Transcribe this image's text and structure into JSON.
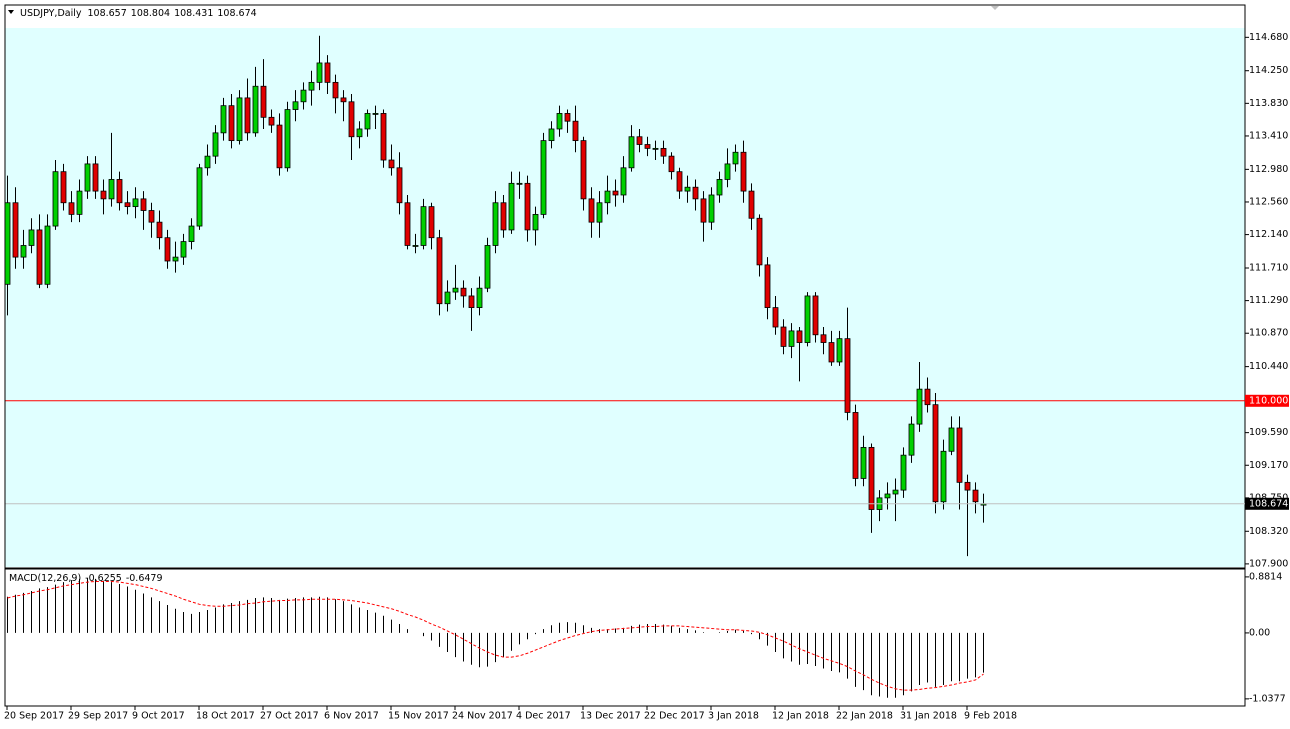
{
  "chart_data": [
    {
      "type": "candlestick",
      "symbol": "USDJPY,Daily",
      "categories": [
        "20 Sep 2017",
        null,
        null,
        null,
        null,
        null,
        null,
        null,
        "29 Sep 2017",
        null,
        null,
        null,
        null,
        null,
        null,
        null,
        "9 Oct 2017",
        null,
        null,
        null,
        null,
        null,
        null,
        null,
        "18 Oct 2017",
        null,
        null,
        null,
        null,
        null,
        null,
        null,
        "27 Oct 2017",
        null,
        null,
        null,
        null,
        null,
        null,
        null,
        "6 Nov 2017",
        null,
        null,
        null,
        null,
        null,
        null,
        null,
        "15 Nov 2017",
        null,
        null,
        null,
        null,
        null,
        null,
        null,
        "24 Nov 2017",
        null,
        null,
        null,
        null,
        null,
        null,
        null,
        "4 Dec 2017",
        null,
        null,
        null,
        null,
        null,
        null,
        null,
        "13 Dec 2017",
        null,
        null,
        null,
        null,
        null,
        null,
        null,
        "22 Dec 2017",
        null,
        null,
        null,
        null,
        null,
        null,
        null,
        "3 Jan 2018",
        null,
        null,
        null,
        null,
        null,
        null,
        null,
        "12 Jan 2018",
        null,
        null,
        null,
        null,
        null,
        null,
        null,
        "22 Jan 2018",
        null,
        null,
        null,
        null,
        null,
        null,
        null,
        "31 Jan 2018",
        null,
        null,
        null,
        null,
        null,
        null,
        null,
        "9 Feb 2018",
        null,
        null
      ],
      "candles": [
        [
          111.5,
          112.9,
          111.1,
          112.55
        ],
        [
          112.55,
          112.75,
          111.7,
          111.85
        ],
        [
          111.85,
          112.2,
          111.7,
          112.0
        ],
        [
          112.0,
          112.35,
          111.9,
          112.2
        ],
        [
          112.2,
          112.4,
          111.45,
          111.5
        ],
        [
          111.5,
          112.4,
          111.45,
          112.25
        ],
        [
          112.25,
          113.1,
          112.2,
          112.95
        ],
        [
          112.95,
          113.05,
          112.45,
          112.55
        ],
        [
          112.55,
          112.7,
          112.3,
          112.4
        ],
        [
          112.4,
          112.85,
          112.3,
          112.7
        ],
        [
          112.7,
          113.15,
          112.6,
          113.05
        ],
        [
          113.05,
          113.15,
          112.6,
          112.7
        ],
        [
          112.7,
          112.85,
          112.4,
          112.6
        ],
        [
          112.6,
          113.45,
          112.5,
          112.85
        ],
        [
          112.85,
          112.95,
          112.45,
          112.55
        ],
        [
          112.55,
          112.7,
          112.4,
          112.5
        ],
        [
          112.5,
          112.75,
          112.35,
          112.6
        ],
        [
          112.6,
          112.7,
          112.2,
          112.45
        ],
        [
          112.45,
          112.55,
          112.1,
          112.3
        ],
        [
          112.3,
          112.45,
          111.95,
          112.1
        ],
        [
          112.1,
          112.2,
          111.7,
          111.8
        ],
        [
          111.8,
          112.05,
          111.65,
          111.85
        ],
        [
          111.85,
          112.15,
          111.75,
          112.05
        ],
        [
          112.05,
          112.35,
          111.95,
          112.25
        ],
        [
          112.25,
          113.05,
          112.2,
          113.0
        ],
        [
          113.0,
          113.3,
          112.9,
          113.15
        ],
        [
          113.15,
          113.55,
          113.05,
          113.45
        ],
        [
          113.45,
          113.9,
          113.35,
          113.8
        ],
        [
          113.8,
          113.95,
          113.25,
          113.35
        ],
        [
          113.35,
          114.0,
          113.3,
          113.9
        ],
        [
          113.9,
          114.15,
          113.35,
          113.45
        ],
        [
          113.45,
          114.3,
          113.4,
          114.05
        ],
        [
          114.05,
          114.4,
          113.5,
          113.65
        ],
        [
          113.65,
          113.75,
          113.45,
          113.55
        ],
        [
          113.55,
          113.7,
          112.9,
          113.0
        ],
        [
          113.0,
          113.85,
          112.95,
          113.75
        ],
        [
          113.75,
          114.0,
          113.6,
          113.85
        ],
        [
          113.85,
          114.1,
          113.75,
          114.0
        ],
        [
          114.0,
          114.25,
          113.8,
          114.1
        ],
        [
          114.1,
          114.7,
          114.0,
          114.35
        ],
        [
          114.35,
          114.45,
          113.95,
          114.1
        ],
        [
          114.1,
          114.2,
          113.7,
          113.9
        ],
        [
          113.9,
          114.0,
          113.6,
          113.85
        ],
        [
          113.85,
          113.95,
          113.1,
          113.4
        ],
        [
          113.4,
          113.6,
          113.25,
          113.5
        ],
        [
          113.5,
          113.75,
          113.4,
          113.7
        ],
        [
          113.7,
          113.8,
          113.5,
          113.7
        ],
        [
          113.7,
          113.75,
          113.0,
          113.1
        ],
        [
          113.1,
          113.3,
          112.9,
          113.0
        ],
        [
          113.0,
          113.2,
          112.4,
          112.55
        ],
        [
          112.55,
          112.65,
          111.95,
          112.0
        ],
        [
          112.0,
          112.15,
          111.9,
          112.0
        ],
        [
          112.0,
          112.6,
          111.95,
          112.5
        ],
        [
          112.5,
          112.55,
          111.95,
          112.1
        ],
        [
          112.1,
          112.2,
          111.1,
          111.25
        ],
        [
          111.25,
          111.55,
          111.15,
          111.4
        ],
        [
          111.4,
          111.75,
          111.3,
          111.45
        ],
        [
          111.45,
          111.55,
          111.2,
          111.35
        ],
        [
          111.35,
          111.45,
          110.9,
          111.2
        ],
        [
          111.2,
          111.6,
          111.1,
          111.45
        ],
        [
          111.45,
          112.1,
          111.4,
          112.0
        ],
        [
          112.0,
          112.7,
          111.9,
          112.55
        ],
        [
          112.55,
          112.65,
          112.1,
          112.2
        ],
        [
          112.2,
          112.95,
          112.15,
          112.8
        ],
        [
          112.8,
          112.95,
          112.6,
          112.8
        ],
        [
          112.8,
          112.9,
          112.05,
          112.2
        ],
        [
          112.2,
          112.5,
          112.0,
          112.4
        ],
        [
          112.4,
          113.45,
          112.35,
          113.35
        ],
        [
          113.35,
          113.6,
          113.25,
          113.5
        ],
        [
          113.5,
          113.8,
          113.4,
          113.7
        ],
        [
          113.7,
          113.75,
          113.45,
          113.6
        ],
        [
          113.6,
          113.8,
          113.2,
          113.35
        ],
        [
          113.35,
          113.4,
          112.45,
          112.6
        ],
        [
          112.6,
          112.75,
          112.1,
          112.3
        ],
        [
          112.3,
          112.7,
          112.1,
          112.55
        ],
        [
          112.55,
          112.9,
          112.4,
          112.7
        ],
        [
          112.7,
          112.85,
          112.5,
          112.65
        ],
        [
          112.65,
          113.15,
          112.55,
          113.0
        ],
        [
          113.0,
          113.55,
          112.95,
          113.4
        ],
        [
          113.4,
          113.5,
          113.2,
          113.3
        ],
        [
          113.3,
          113.4,
          113.15,
          113.25
        ],
        [
          113.25,
          113.35,
          113.1,
          113.25
        ],
        [
          113.25,
          113.35,
          113.05,
          113.15
        ],
        [
          113.15,
          113.2,
          112.85,
          112.95
        ],
        [
          112.95,
          113.0,
          112.6,
          112.7
        ],
        [
          112.7,
          112.9,
          112.55,
          112.75
        ],
        [
          112.75,
          112.85,
          112.45,
          112.6
        ],
        [
          112.6,
          112.7,
          112.05,
          112.3
        ],
        [
          112.3,
          112.75,
          112.2,
          112.65
        ],
        [
          112.65,
          112.95,
          112.55,
          112.85
        ],
        [
          112.85,
          113.25,
          112.75,
          113.05
        ],
        [
          113.05,
          113.3,
          112.95,
          113.2
        ],
        [
          113.2,
          113.35,
          112.55,
          112.7
        ],
        [
          112.7,
          112.8,
          112.2,
          112.35
        ],
        [
          112.35,
          112.4,
          111.6,
          111.75
        ],
        [
          111.75,
          111.85,
          111.05,
          111.2
        ],
        [
          111.2,
          111.35,
          110.85,
          110.95
        ],
        [
          110.95,
          111.05,
          110.6,
          110.7
        ],
        [
          110.7,
          111.0,
          110.55,
          110.9
        ],
        [
          110.9,
          110.95,
          110.25,
          110.75
        ],
        [
          110.75,
          111.4,
          110.7,
          111.35
        ],
        [
          111.35,
          111.4,
          110.75,
          110.85
        ],
        [
          110.85,
          110.95,
          110.6,
          110.75
        ],
        [
          110.75,
          110.9,
          110.45,
          110.5
        ],
        [
          110.5,
          110.9,
          110.45,
          110.8
        ],
        [
          110.8,
          111.2,
          109.75,
          109.85
        ],
        [
          109.85,
          109.95,
          108.9,
          109.0
        ],
        [
          109.0,
          109.55,
          108.9,
          109.4
        ],
        [
          109.4,
          109.45,
          108.3,
          108.6
        ],
        [
          108.6,
          108.85,
          108.45,
          108.75
        ],
        [
          108.75,
          108.95,
          108.6,
          108.8
        ],
        [
          108.8,
          109.0,
          108.45,
          108.85
        ],
        [
          108.85,
          109.4,
          108.75,
          109.3
        ],
        [
          109.3,
          109.8,
          109.2,
          109.7
        ],
        [
          109.7,
          110.5,
          109.6,
          110.15
        ],
        [
          110.15,
          110.3,
          109.85,
          109.95
        ],
        [
          109.95,
          110.1,
          108.55,
          108.7
        ],
        [
          108.7,
          109.5,
          108.6,
          109.35
        ],
        [
          109.35,
          109.8,
          109.3,
          109.65
        ],
        [
          109.65,
          109.8,
          108.6,
          108.95
        ],
        [
          108.95,
          109.05,
          108.0,
          108.85
        ],
        [
          108.85,
          108.95,
          108.55,
          108.7
        ],
        [
          108.657,
          108.804,
          108.431,
          108.674
        ]
      ],
      "colors": {
        "up": "#00d000",
        "down": "#e00000"
      },
      "ylim": [
        107.86,
        114.8
      ],
      "yticks": [
        {
          "value": 114.68,
          "label": "114.680"
        },
        {
          "value": 114.25,
          "label": "114.250"
        },
        {
          "value": 113.83,
          "label": "113.830"
        },
        {
          "value": 113.41,
          "label": "113.410"
        },
        {
          "value": 112.98,
          "label": "112.980"
        },
        {
          "value": 112.56,
          "label": "112.560"
        },
        {
          "value": 112.14,
          "label": "112.140"
        },
        {
          "value": 111.71,
          "label": "111.710"
        },
        {
          "value": 111.29,
          "label": "111.290"
        },
        {
          "value": 110.87,
          "label": "110.870"
        },
        {
          "value": 110.44,
          "label": "110.440"
        },
        {
          "value": 109.59,
          "label": "109.590"
        },
        {
          "value": 109.17,
          "label": "109.170"
        },
        {
          "value": 108.75,
          "label": "108.750"
        },
        {
          "value": 108.32,
          "label": "108.320"
        },
        {
          "value": 107.9,
          "label": "107.900"
        }
      ],
      "hline": {
        "value": 110,
        "label": "110.000",
        "color": "#ff0000"
      },
      "bid_line_color": "#c0c0c0"
    },
    {
      "type": "macd",
      "name": "MACD(12,26,9)",
      "histogram": [
        0.57,
        0.6,
        0.63,
        0.66,
        0.7,
        0.72,
        0.76,
        0.8,
        0.83,
        0.85,
        0.86,
        0.85,
        0.82,
        0.8,
        0.77,
        0.73,
        0.68,
        0.62,
        0.56,
        0.5,
        0.44,
        0.38,
        0.33,
        0.3,
        0.33,
        0.36,
        0.4,
        0.45,
        0.47,
        0.5,
        0.52,
        0.55,
        0.56,
        0.55,
        0.52,
        0.54,
        0.55,
        0.56,
        0.56,
        0.57,
        0.56,
        0.53,
        0.5,
        0.45,
        0.4,
        0.36,
        0.32,
        0.27,
        0.21,
        0.14,
        0.06,
        0.0,
        -0.05,
        -0.12,
        -0.22,
        -0.3,
        -0.38,
        -0.45,
        -0.5,
        -0.54,
        -0.53,
        -0.46,
        -0.38,
        -0.28,
        -0.18,
        -0.1,
        -0.02,
        0.06,
        0.12,
        0.16,
        0.17,
        0.16,
        0.12,
        0.08,
        0.06,
        0.06,
        0.07,
        0.08,
        0.11,
        0.13,
        0.14,
        0.14,
        0.13,
        0.11,
        0.08,
        0.06,
        0.04,
        0.01,
        0.0,
        0.01,
        0.03,
        0.05,
        0.03,
        -0.02,
        -0.1,
        -0.2,
        -0.3,
        -0.4,
        -0.45,
        -0.5,
        -0.49,
        -0.52,
        -0.56,
        -0.6,
        -0.62,
        -0.72,
        -0.85,
        -0.9,
        -0.98,
        -1.0,
        -1.02,
        -1.02,
        -0.98,
        -0.92,
        -0.82,
        -0.78,
        -0.85,
        -0.82,
        -0.76,
        -0.76,
        -0.72,
        -0.7,
        -0.6255
      ],
      "signal": [
        0.55,
        0.58,
        0.6,
        0.63,
        0.66,
        0.68,
        0.71,
        0.74,
        0.76,
        0.78,
        0.8,
        0.81,
        0.81,
        0.81,
        0.8,
        0.78,
        0.76,
        0.73,
        0.7,
        0.66,
        0.62,
        0.58,
        0.53,
        0.49,
        0.45,
        0.43,
        0.42,
        0.42,
        0.43,
        0.44,
        0.46,
        0.47,
        0.49,
        0.5,
        0.51,
        0.51,
        0.52,
        0.52,
        0.53,
        0.53,
        0.53,
        0.53,
        0.52,
        0.51,
        0.49,
        0.47,
        0.44,
        0.41,
        0.38,
        0.34,
        0.29,
        0.25,
        0.2,
        0.14,
        0.09,
        0.03,
        -0.03,
        -0.1,
        -0.17,
        -0.24,
        -0.3,
        -0.35,
        -0.38,
        -0.38,
        -0.36,
        -0.32,
        -0.27,
        -0.22,
        -0.17,
        -0.12,
        -0.08,
        -0.04,
        -0.01,
        0.02,
        0.04,
        0.05,
        0.06,
        0.07,
        0.08,
        0.09,
        0.1,
        0.1,
        0.11,
        0.11,
        0.11,
        0.1,
        0.09,
        0.08,
        0.07,
        0.06,
        0.05,
        0.05,
        0.04,
        0.03,
        0.01,
        -0.03,
        -0.08,
        -0.13,
        -0.19,
        -0.25,
        -0.3,
        -0.35,
        -0.4,
        -0.44,
        -0.48,
        -0.53,
        -0.6,
        -0.66,
        -0.73,
        -0.79,
        -0.84,
        -0.88,
        -0.9,
        -0.9,
        -0.89,
        -0.87,
        -0.86,
        -0.84,
        -0.82,
        -0.79,
        -0.77,
        -0.74,
        -0.6479
      ],
      "histogram_color": "#000000",
      "signal_color": "#ff0000",
      "ylim": [
        -1.15,
        0.99
      ],
      "yticks": [
        0.8814,
        {
          "value": 0,
          "label": "0.00"
        },
        -1.0377
      ]
    }
  ]
}
